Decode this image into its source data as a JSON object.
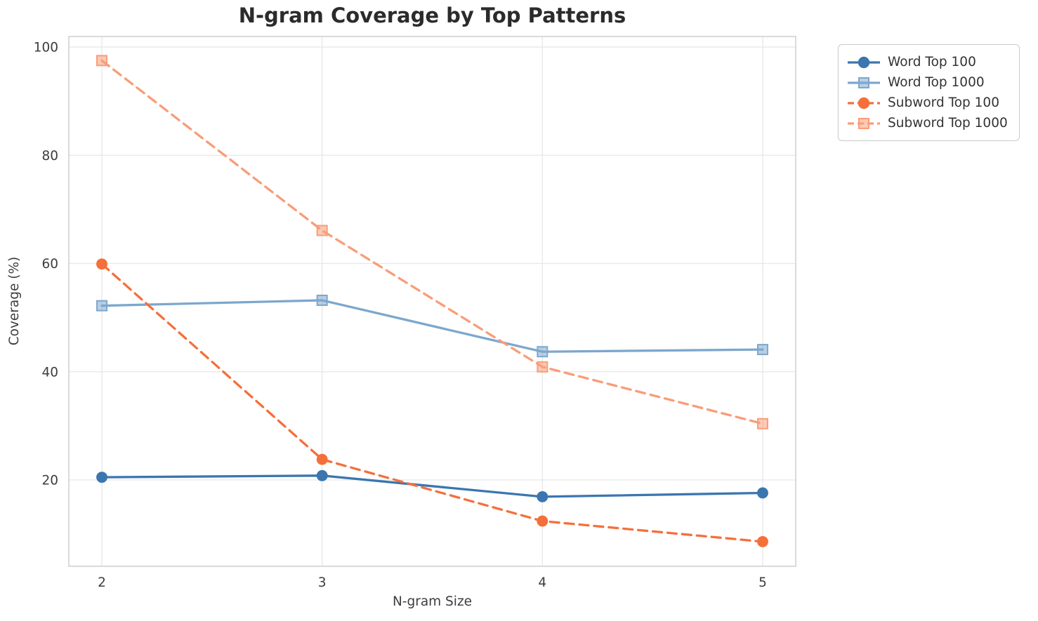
{
  "chart_data": {
    "type": "line",
    "title": "N-gram Coverage by Top Patterns",
    "xlabel": "N-gram Size",
    "ylabel": "Coverage (%)",
    "x": [
      2,
      3,
      4,
      5
    ],
    "xticks": [
      2,
      3,
      4,
      5
    ],
    "yticks": [
      20,
      40,
      60,
      80,
      100
    ],
    "xlim": [
      1.85,
      5.15
    ],
    "ylim": [
      4.05,
      101.95
    ],
    "grid": true,
    "legend_position": "outside-top-right",
    "series": [
      {
        "name": "Word Top 100",
        "color": "#3b76af",
        "linestyle": "solid",
        "marker": "circle",
        "values": [
          20.5,
          20.8,
          16.9,
          17.6
        ]
      },
      {
        "name": "Word Top 1000",
        "color": "#7da7cd",
        "linestyle": "solid",
        "marker": "square",
        "values": [
          52.2,
          53.2,
          43.7,
          44.1
        ]
      },
      {
        "name": "Subword Top 100",
        "color": "#f4703b",
        "linestyle": "dashed",
        "marker": "circle",
        "values": [
          59.9,
          23.8,
          12.4,
          8.6
        ]
      },
      {
        "name": "Subword Top 1000",
        "color": "#f99d79",
        "linestyle": "dashed",
        "marker": "square",
        "values": [
          97.5,
          66.1,
          40.9,
          30.4
        ]
      }
    ],
    "style": {
      "background": "#ffffff",
      "grid_color": "#e7e7e7",
      "spine_color": "#cbcbcb",
      "tick_color": "#3d3d3d",
      "title_color": "#2b2b2b"
    }
  }
}
